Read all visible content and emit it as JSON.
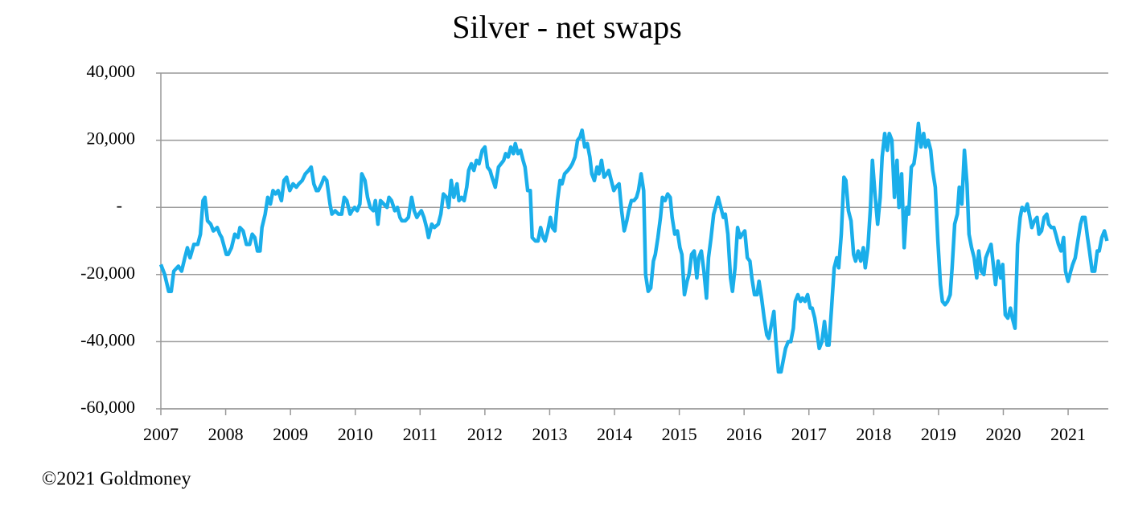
{
  "chart_data": {
    "type": "line",
    "title": "Silver - net swaps",
    "copyright": "©2021 Goldmoney",
    "color": "#1aaeea",
    "grid": true,
    "xlim": [
      2007,
      2021.62
    ],
    "xticks": [
      2007,
      2008,
      2009,
      2010,
      2011,
      2012,
      2013,
      2014,
      2015,
      2016,
      2017,
      2018,
      2019,
      2020,
      2021
    ],
    "ylim": [
      -60000,
      40000
    ],
    "yticks": [
      {
        "value": -60000,
        "label": "-60,000"
      },
      {
        "value": -40000,
        "label": "-40,000"
      },
      {
        "value": -20000,
        "label": "-20,000"
      },
      {
        "value": 0,
        "label": "-"
      },
      {
        "value": 20000,
        "label": "20,000"
      },
      {
        "value": 40000,
        "label": "40,000"
      }
    ],
    "x": [
      2007.0,
      2007.06,
      2007.12,
      2007.16,
      2007.2,
      2007.27,
      2007.32,
      2007.37,
      2007.41,
      2007.45,
      2007.51,
      2007.57,
      2007.61,
      2007.65,
      2007.68,
      2007.72,
      2007.77,
      2007.81,
      2007.87,
      2007.91,
      2007.94,
      2008.01,
      2008.04,
      2008.09,
      2008.14,
      2008.19,
      2008.22,
      2008.27,
      2008.32,
      2008.37,
      2008.41,
      2008.45,
      2008.49,
      2008.53,
      2008.56,
      2008.61,
      2008.65,
      2008.69,
      2008.73,
      2008.77,
      2008.81,
      2008.86,
      2008.9,
      2008.94,
      2008.99,
      2009.04,
      2009.09,
      2009.13,
      2009.18,
      2009.23,
      2009.28,
      2009.32,
      2009.36,
      2009.4,
      2009.43,
      2009.48,
      2009.52,
      2009.56,
      2009.61,
      2009.64,
      2009.69,
      2009.74,
      2009.79,
      2009.83,
      2009.87,
      2009.92,
      2009.95,
      2009.99,
      2010.03,
      2010.07,
      2010.1,
      2010.15,
      2010.19,
      2010.23,
      2010.28,
      2010.31,
      2010.35,
      2010.39,
      2010.44,
      2010.49,
      2010.52,
      2010.56,
      2010.61,
      2010.65,
      2010.69,
      2010.72,
      2010.77,
      2010.82,
      2010.87,
      2010.91,
      2010.95,
      2010.98,
      2011.02,
      2011.06,
      2011.1,
      2011.13,
      2011.18,
      2011.22,
      2011.28,
      2011.32,
      2011.36,
      2011.41,
      2011.44,
      2011.48,
      2011.52,
      2011.57,
      2011.6,
      2011.64,
      2011.68,
      2011.72,
      2011.75,
      2011.79,
      2011.83,
      2011.87,
      2011.91,
      2011.96,
      2012.0,
      2012.04,
      2012.08,
      2012.11,
      2012.16,
      2012.21,
      2012.25,
      2012.29,
      2012.32,
      2012.36,
      2012.4,
      2012.44,
      2012.47,
      2012.51,
      2012.55,
      2012.59,
      2012.62,
      2012.66,
      2012.7,
      2012.73,
      2012.78,
      2012.82,
      2012.86,
      2012.9,
      2012.93,
      2012.97,
      2013.01,
      2013.04,
      2013.08,
      2013.12,
      2013.16,
      2013.19,
      2013.23,
      2013.28,
      2013.32,
      2013.35,
      2013.39,
      2013.43,
      2013.47,
      2013.5,
      2013.54,
      2013.58,
      2013.62,
      2013.65,
      2013.69,
      2013.73,
      2013.76,
      2013.8,
      2013.84,
      2013.88,
      2013.91,
      2013.95,
      2013.99,
      2014.02,
      2014.07,
      2014.11,
      2014.15,
      2014.19,
      2014.22,
      2014.26,
      2014.3,
      2014.34,
      2014.37,
      2014.41,
      2014.45,
      2014.48,
      2014.52,
      2014.56,
      2014.6,
      2014.63,
      2014.67,
      2014.71,
      2014.74,
      2014.78,
      2014.82,
      2014.86,
      2014.89,
      2014.93,
      2014.97,
      2015.01,
      2015.04,
      2015.08,
      2015.12,
      2015.15,
      2015.19,
      2015.23,
      2015.27,
      2015.3,
      2015.34,
      2015.38,
      2015.42,
      2015.45,
      2015.49,
      2015.53,
      2015.56,
      2015.6,
      2015.64,
      2015.68,
      2015.71,
      2015.75,
      2015.79,
      2015.82,
      2015.86,
      2015.9,
      2015.94,
      2015.97,
      2016.01,
      2016.05,
      2016.09,
      2016.12,
      2016.16,
      2016.2,
      2016.23,
      2016.27,
      2016.31,
      2016.35,
      2016.38,
      2016.42,
      2016.46,
      2016.49,
      2016.53,
      2016.57,
      2016.61,
      2016.64,
      2016.68,
      2016.72,
      2016.76,
      2016.79,
      2016.83,
      2016.87,
      2016.9,
      2016.94,
      2016.98,
      2017.02,
      2017.05,
      2017.09,
      2017.13,
      2017.16,
      2017.2,
      2017.24,
      2017.28,
      2017.31,
      2017.35,
      2017.39,
      2017.43,
      2017.46,
      2017.5,
      2017.54,
      2017.57,
      2017.61,
      2017.65,
      2017.69,
      2017.72,
      2017.76,
      2017.8,
      2017.84,
      2017.87,
      2017.91,
      2017.95,
      2017.98,
      2018.02,
      2018.06,
      2018.1,
      2018.13,
      2018.17,
      2018.21,
      2018.24,
      2018.28,
      2018.32,
      2018.36,
      2018.39,
      2018.43,
      2018.47,
      2018.51,
      2018.54,
      2018.58,
      2018.62,
      2018.65,
      2018.69,
      2018.73,
      2018.77,
      2018.8,
      2018.84,
      2018.88,
      2018.91,
      2018.95,
      2018.99,
      2019.03,
      2019.06,
      2019.1,
      2019.14,
      2019.18,
      2019.21,
      2019.25,
      2019.29,
      2019.32,
      2019.36,
      2019.4,
      2019.44,
      2019.47,
      2019.51,
      2019.55,
      2019.59,
      2019.62,
      2019.66,
      2019.7,
      2019.73,
      2019.77,
      2019.81,
      2019.85,
      2019.88,
      2019.92,
      2019.96,
      2019.99,
      2020.03,
      2020.07,
      2020.11,
      2020.14,
      2020.18,
      2020.22,
      2020.26,
      2020.29,
      2020.33,
      2020.37,
      2020.4,
      2020.44,
      2020.48,
      2020.52,
      2020.55,
      2020.59,
      2020.63,
      2020.67,
      2020.7,
      2020.74,
      2020.78,
      2020.81,
      2020.85,
      2020.89,
      2020.93,
      2020.96,
      2021.0,
      2021.04,
      2021.07,
      2021.11,
      2021.15,
      2021.19,
      2021.22,
      2021.26,
      2021.3,
      2021.33,
      2021.37,
      2021.41,
      2021.45,
      2021.48,
      2021.52,
      2021.56,
      2021.6
    ],
    "values": [
      -17000,
      -20000,
      -25000,
      -25000,
      -19000,
      -17500,
      -19000,
      -15000,
      -12000,
      -15000,
      -11000,
      -11000,
      -8000,
      2000,
      3000,
      -4000,
      -5000,
      -7000,
      -6000,
      -8000,
      -9000,
      -14000,
      -14000,
      -12000,
      -8000,
      -9000,
      -6000,
      -7000,
      -11000,
      -11000,
      -8000,
      -9000,
      -13000,
      -13000,
      -6000,
      -2000,
      3000,
      1000,
      5000,
      4000,
      5000,
      2000,
      8000,
      9000,
      5000,
      7000,
      6000,
      7000,
      8000,
      10000,
      11000,
      12000,
      7000,
      5000,
      5000,
      7000,
      9000,
      8000,
      1000,
      -2000,
      -1000,
      -2000,
      -2000,
      3000,
      2000,
      -2000,
      -1000,
      0,
      -1000,
      1000,
      10000,
      8000,
      3000,
      0,
      -1000,
      2000,
      -5000,
      2000,
      1000,
      0,
      3000,
      2000,
      -1000,
      0,
      -3000,
      -4000,
      -4000,
      -3000,
      3000,
      -1000,
      -3000,
      -2000,
      -1000,
      -3000,
      -6000,
      -9000,
      -5000,
      -6000,
      -5000,
      -2000,
      4000,
      3000,
      0,
      8000,
      3000,
      7000,
      2000,
      3000,
      2000,
      6000,
      11000,
      13000,
      11000,
      14000,
      13000,
      17000,
      18000,
      12000,
      11000,
      9000,
      6000,
      12000,
      13000,
      14000,
      16000,
      15000,
      18000,
      16000,
      19000,
      16000,
      17000,
      14000,
      12000,
      5000,
      5000,
      -9000,
      -10000,
      -10000,
      -6000,
      -9000,
      -10000,
      -7000,
      -3000,
      -6000,
      -7000,
      2000,
      8000,
      7000,
      10000,
      11000,
      12000,
      13000,
      15000,
      20000,
      21000,
      23000,
      18000,
      19000,
      15000,
      10000,
      8000,
      12000,
      10000,
      14000,
      9000,
      10000,
      11000,
      8000,
      5000,
      6000,
      7000,
      -1000,
      -7000,
      -4000,
      -1000,
      2000,
      2000,
      3000,
      5000,
      10000,
      5000,
      -20000,
      -25000,
      -24000,
      -16000,
      -14000,
      -9000,
      -3000,
      3000,
      2000,
      4000,
      3000,
      -3000,
      -8000,
      -7000,
      -12000,
      -14000,
      -26000,
      -22000,
      -20000,
      -14000,
      -13000,
      -21000,
      -15000,
      -13000,
      -19000,
      -27000,
      -15000,
      -9000,
      -2000,
      0,
      3000,
      0,
      -3000,
      -2000,
      -8000,
      -21000,
      -25000,
      -18000,
      -6000,
      -9000,
      -8000,
      -7000,
      -15000,
      -16000,
      -21000,
      -26000,
      -26000,
      -22000,
      -27000,
      -33000,
      -38000,
      -39000,
      -35000,
      -31000,
      -40000,
      -49000,
      -49000,
      -45000,
      -42000,
      -40000,
      -40000,
      -36000,
      -28000,
      -26000,
      -28000,
      -27000,
      -28000,
      -26000,
      -30000,
      -30000,
      -33000,
      -38000,
      -42000,
      -40000,
      -34000,
      -41000,
      -41000,
      -30000,
      -18000,
      -15000,
      -18000,
      -8000,
      9000,
      8000,
      -1000,
      -4000,
      -14000,
      -16000,
      -13000,
      -16000,
      -12000,
      -18000,
      -12000,
      0,
      14000,
      4000,
      -5000,
      3000,
      15000,
      22000,
      17000,
      22000,
      20000,
      3000,
      14000,
      0,
      10000,
      -12000,
      0,
      -2000,
      12000,
      13000,
      17000,
      25000,
      18000,
      22000,
      18000,
      20000,
      17000,
      11000,
      6000,
      -10000,
      -23000,
      -28000,
      -29000,
      -28000,
      -26000,
      -18000,
      -5000,
      -2000,
      6000,
      1000,
      17000,
      7000,
      -8000,
      -12000,
      -15000,
      -21000,
      -13000,
      -19000,
      -20000,
      -15000,
      -13000,
      -11000,
      -18000,
      -23000,
      -16000,
      -21000,
      -17000,
      -32000,
      -33000,
      -30000,
      -33000,
      -36000,
      -11000,
      -3000,
      0,
      -1000,
      1000,
      -2000,
      -6000,
      -4000,
      -3000,
      -8000,
      -7000,
      -3000,
      -2000,
      -5000,
      -6000,
      -6000,
      -8000,
      -11000,
      -13000,
      -9000,
      -19000,
      -22000,
      -19000,
      -17000,
      -15000,
      -10000,
      -5000,
      -3000,
      -3000,
      -9000,
      -13000,
      -19000,
      -19000,
      -13000,
      -13000,
      -9000,
      -7000,
      -10000
    ]
  }
}
